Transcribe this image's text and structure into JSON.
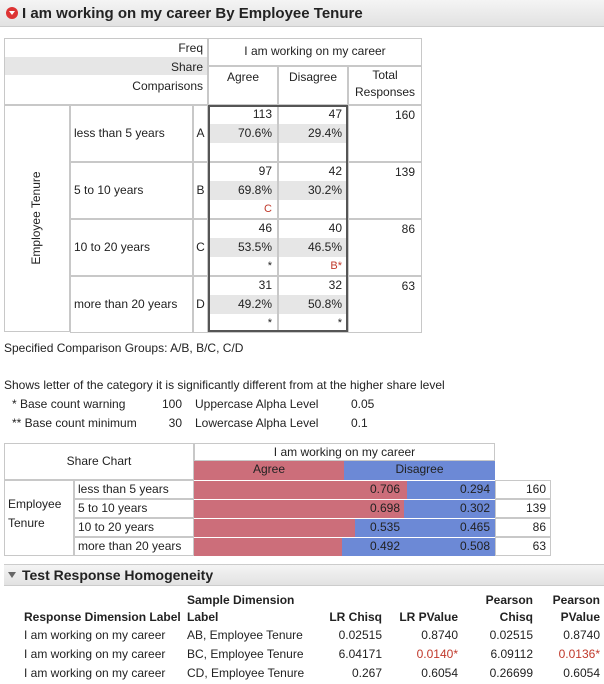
{
  "title": "I am working on my career By Employee Tenure",
  "crosstab": {
    "stat_labels": [
      "Freq",
      "Share",
      "Comparisons"
    ],
    "column_header": "I am working on my career",
    "columns": [
      "Agree",
      "Disagree"
    ],
    "total_header": "Total Responses",
    "row_header": "Employee Tenure",
    "rows": [
      {
        "label": "less than 5 years",
        "letter": "A",
        "freq": [
          113,
          47
        ],
        "share": [
          "70.6%",
          "29.4%"
        ],
        "comparisons": [
          null,
          null
        ],
        "total": 160
      },
      {
        "label": "5 to 10 years",
        "letter": "B",
        "freq": [
          97,
          42
        ],
        "share": [
          "69.8%",
          "30.2%"
        ],
        "comparisons": [
          "C",
          null
        ],
        "total": 139
      },
      {
        "label": "10 to 20 years",
        "letter": "C",
        "freq": [
          46,
          40
        ],
        "share": [
          "53.5%",
          "46.5%"
        ],
        "comparisons": [
          "*",
          "B*"
        ],
        "total": 86
      },
      {
        "label": "more than 20 years",
        "letter": "D",
        "freq": [
          31,
          32
        ],
        "share": [
          "49.2%",
          "50.8%"
        ],
        "comparisons": [
          "*",
          "*"
        ],
        "total": 63
      }
    ]
  },
  "notes": {
    "comparison_groups": "Specified Comparison Groups: A/B, B/C, C/D",
    "explanation": "Shows letter of the category it is significantly different from at the higher share level",
    "base_counts": [
      {
        "label": "* Base count warning",
        "value": 100
      },
      {
        "label": "** Base count minimum",
        "value": 30
      }
    ],
    "alpha_levels": [
      {
        "label": "Uppercase Alpha Level",
        "value": 0.05
      },
      {
        "label": "Lowercase Alpha Level",
        "value": 0.1
      }
    ]
  },
  "share_chart": {
    "title": "Share Chart",
    "column_header": "I am working on my career",
    "columns": [
      "Agree",
      "Disagree"
    ],
    "colors": [
      "#cc6e7a",
      "#6c89d6"
    ],
    "row_header": "Employee Tenure",
    "rows": [
      "less than 5 years",
      "5 to 10 years",
      "10 to 20 years",
      "more than 20 years"
    ],
    "agree": [
      0.706,
      0.698,
      0.535,
      0.492
    ],
    "disagree": [
      0.294,
      0.302,
      0.465,
      0.508
    ],
    "totals": [
      160,
      139,
      86,
      63
    ]
  },
  "test": {
    "title": "Test Response Homogeneity",
    "headers": [
      "Response Dimension Label",
      "Sample Dimension Label",
      "LR Chisq",
      "LR PValue",
      "Pearson Chisq",
      "Pearson PValue"
    ],
    "rows": [
      [
        "I am working on my career",
        "AB, Employee Tenure",
        "0.02515",
        "0.8740",
        "0.02515",
        "0.8740"
      ],
      [
        "I am working on my career",
        "BC, Employee Tenure",
        "6.04171",
        "0.0140*",
        "6.09112",
        "0.0136*"
      ],
      [
        "I am working on my career",
        "CD, Employee Tenure",
        "0.267",
        "0.6054",
        "0.26699",
        "0.6054"
      ]
    ]
  }
}
